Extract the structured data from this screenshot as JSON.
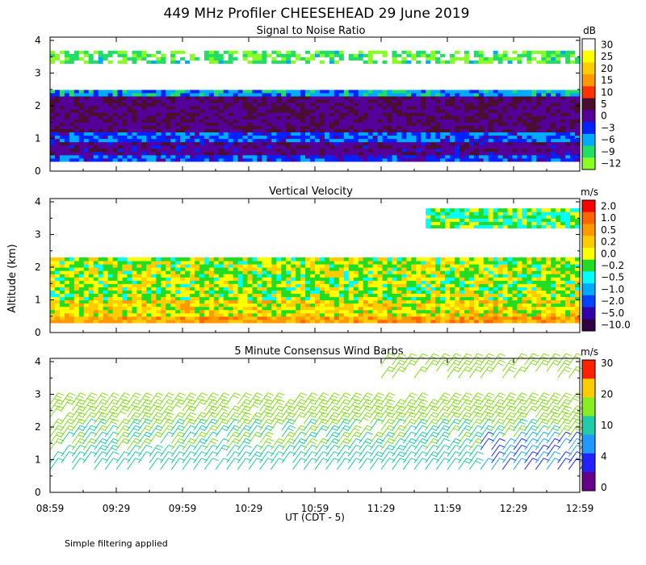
{
  "title": "449 MHz Profiler CHEESEHEAD 29 June 2019",
  "ylabel": "Altitude (km)",
  "xlabel": "UT  (CDT - 5)",
  "note": "Simple filtering applied",
  "x_ticks": [
    "08:59",
    "09:29",
    "09:59",
    "10:29",
    "10:59",
    "11:29",
    "11:59",
    "12:29",
    "12:59"
  ],
  "x_range_hours": [
    8.9833,
    12.9833
  ],
  "chart_data": [
    {
      "type": "heatmap",
      "title": "Signal to Noise Ratio",
      "ylim": [
        0,
        4.1
      ],
      "y_ticks": [
        0,
        1,
        2,
        3,
        4
      ],
      "colorbar": {
        "unit": "dB",
        "labels": [
          "30",
          "25",
          "20",
          "15",
          "10",
          "5",
          "0",
          "−3",
          "−6",
          "−9",
          "−12"
        ],
        "colors": [
          "#ffffff",
          "#ffff00",
          "#ffcc00",
          "#ff9900",
          "#ff3300",
          "#4a0e2e",
          "#550099",
          "#0022ff",
          "#00aaff",
          "#22dd66",
          "#88ff22"
        ]
      },
      "layers": [
        {
          "from_km": 0.3,
          "to_km": 0.5,
          "value_db": -3
        },
        {
          "from_km": 0.5,
          "to_km": 0.9,
          "value_db": 1
        },
        {
          "from_km": 0.9,
          "to_km": 1.2,
          "value_db": -4
        },
        {
          "from_km": 1.2,
          "to_km": 2.3,
          "value_db": 2
        },
        {
          "from_km": 2.3,
          "to_km": 2.5,
          "value_db": -6
        },
        {
          "from_km": 2.5,
          "to_km": 3.3,
          "value_db": 30
        },
        {
          "from_km": 3.3,
          "to_km": 3.7,
          "value_db": -10
        },
        {
          "from_km": 3.7,
          "to_km": 4.1,
          "value_db": 30
        }
      ]
    },
    {
      "type": "heatmap",
      "title": "Vertical Velocity",
      "ylim": [
        0,
        4.1
      ],
      "y_ticks": [
        0,
        1,
        2,
        3,
        4
      ],
      "colorbar": {
        "unit": "m/s",
        "labels": [
          "2.0",
          "1.0",
          "0.5",
          "0.2",
          "0.0",
          "−0.2",
          "−0.5",
          "−1.0",
          "−2.0",
          "−5.0",
          "−10.0"
        ],
        "colors": [
          "#ff0000",
          "#ff6600",
          "#ff9900",
          "#ffcc00",
          "#ffff00",
          "#22dd22",
          "#00ffff",
          "#00aaff",
          "#0044ff",
          "#3300aa",
          "#330044"
        ]
      },
      "layers": [
        {
          "from_km": 0.3,
          "to_km": 0.5,
          "value_ms": 0.5
        },
        {
          "from_km": 0.5,
          "to_km": 1.0,
          "value_ms": 0.1
        },
        {
          "from_km": 1.0,
          "to_km": 2.3,
          "value_ms": -0.1
        },
        {
          "from_km": 2.3,
          "to_km": 3.2,
          "value_ms": null
        },
        {
          "from_km": 3.2,
          "to_km": 3.8,
          "value_ms": -0.3
        },
        {
          "from_km": 3.8,
          "to_km": 4.1,
          "value_ms": null
        }
      ]
    },
    {
      "type": "scatter",
      "title": "5 Minute Consensus Wind Barbs",
      "ylim": [
        0,
        4.1
      ],
      "y_ticks": [
        0,
        1,
        2,
        3,
        4
      ],
      "colorbar": {
        "unit": "m/s",
        "labels": [
          "30",
          "20",
          "10",
          "4",
          "0"
        ],
        "colors": [
          "#ff2200",
          "#ffcc00",
          "#88ee22",
          "#22ccaa",
          "#2299ff",
          "#2222ff",
          "#660088"
        ]
      },
      "barb_heights_km": [
        0.7,
        0.9,
        1.1,
        1.3,
        1.5,
        1.7,
        1.9,
        2.1,
        2.3,
        2.5,
        2.7
      ],
      "upper_barb_heights_km": [
        3.5,
        3.7,
        3.9
      ],
      "barb_interval_min": 5
    }
  ]
}
